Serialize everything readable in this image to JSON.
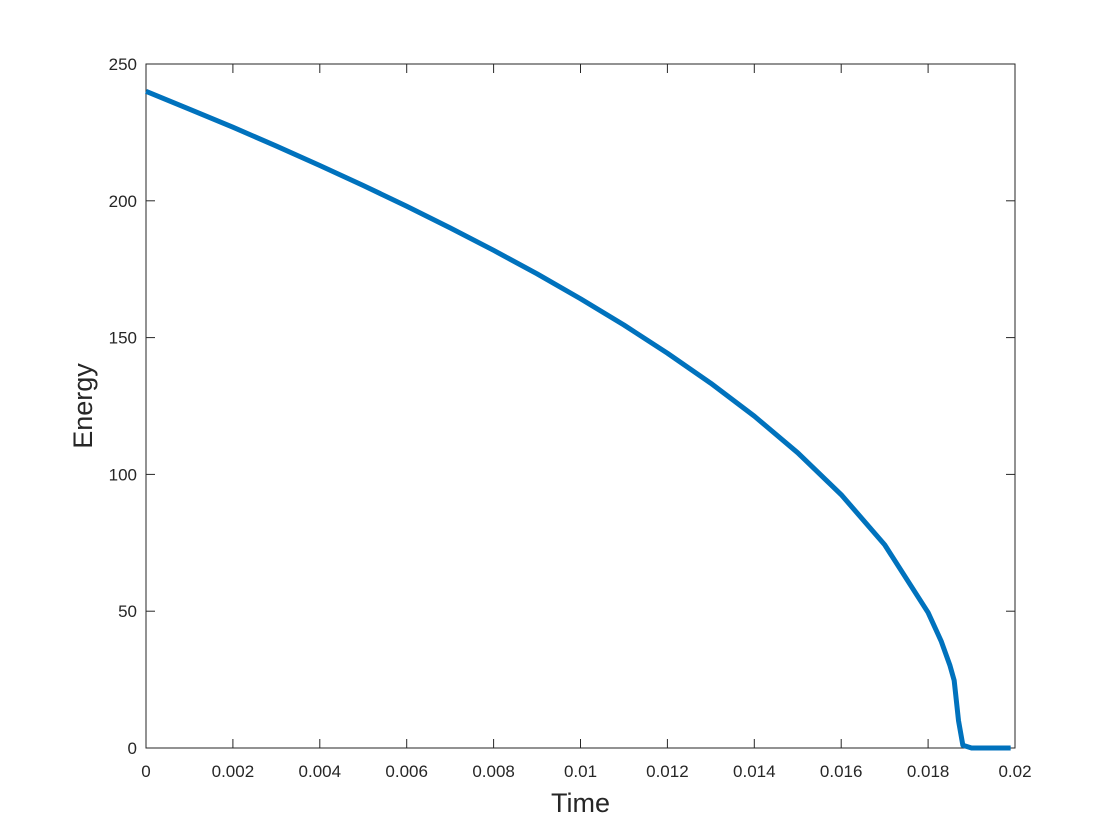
{
  "chart_data": {
    "type": "line",
    "xlabel": "Time",
    "ylabel": "Energy",
    "x": [
      0,
      0.001,
      0.002,
      0.003,
      0.004,
      0.005,
      0.006,
      0.007,
      0.008,
      0.009,
      0.01,
      0.011,
      0.012,
      0.013,
      0.014,
      0.015,
      0.016,
      0.017,
      0.018,
      0.0183,
      0.0185,
      0.0186,
      0.0187,
      0.0188,
      0.019,
      0.0195,
      0.0199
    ],
    "series": [
      {
        "color": "#0072bd",
        "values": [
          240,
          233.5,
          226.9,
          220.0,
          212.9,
          205.6,
          198.0,
          190.1,
          181.9,
          173.3,
          164.2,
          154.6,
          144.3,
          133.3,
          121.3,
          107.9,
          92.6,
          74.3,
          49.5,
          39.1,
          30.3,
          24.7,
          10,
          1,
          0,
          0,
          0
        ]
      }
    ],
    "xlim": [
      0,
      0.02
    ],
    "xticks": [
      0,
      0.002,
      0.004,
      0.006,
      0.008,
      0.01,
      0.012,
      0.014,
      0.016,
      0.018,
      0.02
    ],
    "ylim": [
      0,
      250
    ],
    "yticks": [
      0,
      50,
      100,
      150,
      200,
      250
    ],
    "grid": false
  }
}
